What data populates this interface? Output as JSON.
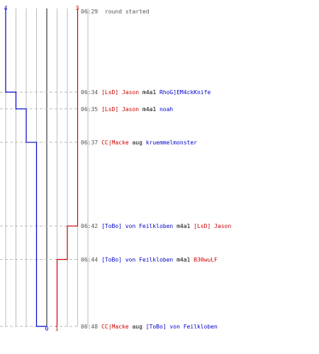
{
  "colors": {
    "team_a": "#0000cc",
    "team_b": "#cc0000",
    "neutral": "#000000",
    "time": "#555555",
    "grid": "#bbbbbb",
    "center": "#888888",
    "dash": "#bbbbbb"
  },
  "timeline": {
    "top_counts": {
      "team_a": "4",
      "team_b": "3"
    },
    "bottom_counts": {
      "team_a": "0",
      "team_b": "1"
    },
    "start": {
      "time": "06:29",
      "text": "round started"
    },
    "events": [
      {
        "time": "06:34",
        "team_a_remaining": 3,
        "team_b_remaining": 3,
        "parts": [
          {
            "text": "[LsD] Jason",
            "team": "team_b"
          },
          {
            "text": " m4a1 ",
            "team": "neutral"
          },
          {
            "text": "RhoG]EM4ckKnife",
            "team": "team_a"
          }
        ]
      },
      {
        "time": "06:35",
        "team_a_remaining": 2,
        "team_b_remaining": 3,
        "parts": [
          {
            "text": "[LsD] Jason",
            "team": "team_b"
          },
          {
            "text": " m4a1 ",
            "team": "neutral"
          },
          {
            "text": "noah",
            "team": "team_a"
          }
        ]
      },
      {
        "time": "06:37",
        "team_a_remaining": 1,
        "team_b_remaining": 3,
        "parts": [
          {
            "text": "CC|Macke",
            "team": "team_b"
          },
          {
            "text": " aug ",
            "team": "neutral"
          },
          {
            "text": "kruemmelmonster",
            "team": "team_a"
          }
        ]
      },
      {
        "time": "06:42",
        "team_a_remaining": 1,
        "team_b_remaining": 2,
        "parts": [
          {
            "text": "[ToBo] von Feilkloben",
            "team": "team_a"
          },
          {
            "text": " m4a1 ",
            "team": "neutral"
          },
          {
            "text": "[LsD] Jason",
            "team": "team_b"
          }
        ]
      },
      {
        "time": "06:44",
        "team_a_remaining": 1,
        "team_b_remaining": 1,
        "parts": [
          {
            "text": "[ToBo] von Feilkloben",
            "team": "team_a"
          },
          {
            "text": " m4a1 ",
            "team": "neutral"
          },
          {
            "text": "B30wuLF",
            "team": "team_b"
          }
        ]
      },
      {
        "time": "06:48",
        "team_a_remaining": 0,
        "team_b_remaining": 1,
        "parts": [
          {
            "text": "CC|Macke",
            "team": "team_b"
          },
          {
            "text": " aug ",
            "team": "neutral"
          },
          {
            "text": "[ToBo] von Feilkloben",
            "team": "team_a"
          }
        ]
      }
    ]
  }
}
